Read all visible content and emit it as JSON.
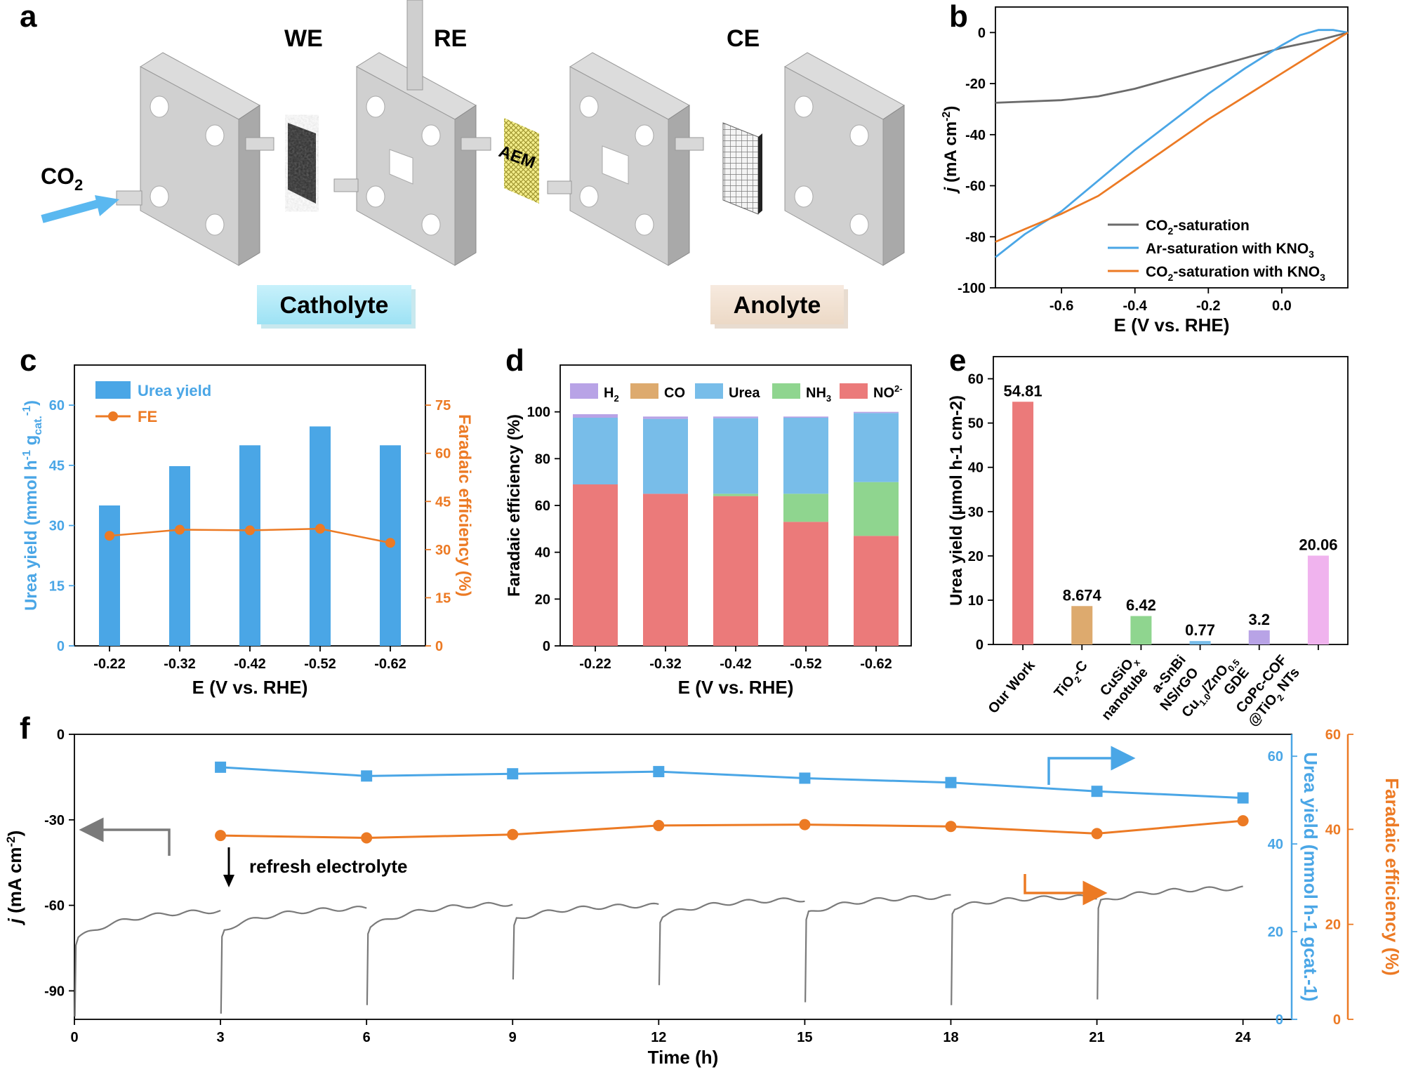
{
  "panels": {
    "a": "a",
    "b": "b",
    "c": "c",
    "d": "d",
    "e": "e",
    "f": "f"
  },
  "panel_a": {
    "we": "WE",
    "re": "RE",
    "ce": "CE",
    "aem": "AEM",
    "co2_main": "CO",
    "co2_sub": "2",
    "catholyte": "Catholyte",
    "anolyte": "Anolyte"
  },
  "colors": {
    "blue": "#4aa6e6",
    "orange": "#ec7a24",
    "gray": "#6b6b6b",
    "red": "#eb7a7a",
    "green": "#8fd58f",
    "lightblue": "#78bde9",
    "purple": "#b8a3e6",
    "tan": "#ddaa6e"
  },
  "chart_data": [
    {
      "id": "b",
      "type": "line",
      "xlabel": "E (V vs. RHE)",
      "ylabel": "j (mA cm-2)",
      "xlim": [
        -0.78,
        0.18
      ],
      "ylim": [
        -100,
        10
      ],
      "xticks": [
        -0.6,
        -0.4,
        -0.2,
        0.0
      ],
      "xtick_labels": [
        "-0.6",
        "-0.4",
        "-0.2",
        "0.0"
      ],
      "yticks": [
        0,
        -20,
        -40,
        -60,
        -80,
        -100
      ],
      "ytick_labels": [
        "0",
        "-20",
        "-40",
        "-60",
        "-80",
        "-100"
      ],
      "series": [
        {
          "name": "CO2-saturation",
          "color": "#6b6b6b",
          "x": [
            -0.78,
            -0.6,
            -0.5,
            -0.4,
            -0.3,
            -0.2,
            -0.1,
            0,
            0.1,
            0.18
          ],
          "y": [
            -27.5,
            -26.5,
            -25,
            -22,
            -18,
            -14,
            -10,
            -6,
            -3,
            0
          ]
        },
        {
          "name": "Ar-saturation with KNO3",
          "color": "#4aa6e6",
          "x": [
            -0.78,
            -0.7,
            -0.6,
            -0.5,
            -0.4,
            -0.3,
            -0.2,
            -0.1,
            0,
            0.05,
            0.1,
            0.14,
            0.18
          ],
          "y": [
            -88,
            -79,
            -70,
            -58,
            -46,
            -35,
            -24,
            -14,
            -5,
            -1,
            1,
            1,
            0
          ]
        },
        {
          "name": "CO2-saturation with KNO3",
          "color": "#ec7a24",
          "x": [
            -0.78,
            -0.7,
            -0.6,
            -0.5,
            -0.4,
            -0.3,
            -0.2,
            -0.1,
            0,
            0.1,
            0.18
          ],
          "y": [
            -82,
            -77,
            -71,
            -64,
            -54,
            -44,
            -34,
            -25,
            -16,
            -7,
            0
          ]
        }
      ],
      "legend": [
        "CO2-saturation",
        "Ar-saturation with KNO3",
        "CO2-saturation with KNO3"
      ],
      "legend_display": {
        "l1a": "CO",
        "l1b": "2",
        "l1c": "-saturation",
        "l2a": "Ar-saturation with KNO",
        "l2b": "3",
        "l3a": "CO",
        "l3b": "2",
        "l3c": "-saturation with KNO",
        "l3d": "3"
      }
    },
    {
      "id": "c",
      "type": "bar",
      "categories": [
        "-0.22",
        "-0.32",
        "-0.42",
        "-0.52",
        "-0.62"
      ],
      "series": [
        {
          "name": "Urea yield",
          "axis": "left",
          "values": [
            35,
            44.8,
            50,
            54.7,
            50
          ]
        },
        {
          "name": "FE",
          "axis": "right",
          "values": [
            34.3,
            36.2,
            36.0,
            36.5,
            32.1
          ]
        }
      ],
      "xlabel": "E (V vs. RHE)",
      "ylabel_left": "Urea yield (mmol h-1 gcat.-1)",
      "ylabel_right": "Faradaic efficiency (%)",
      "ylim_left": [
        0,
        70
      ],
      "ylim_right": [
        0,
        87.5
      ],
      "yticks_left": [
        "0",
        "15",
        "30",
        "45",
        "60"
      ],
      "yticks_right": [
        "0",
        "15",
        "30",
        "45",
        "60",
        "75"
      ],
      "legend": [
        "Urea yield",
        "FE"
      ],
      "ylabel_left_display": {
        "a": "Urea yield (mmol h",
        "b": "-1",
        "c": " g",
        "d": "cat.",
        "e": "-1",
        "f": ")"
      }
    },
    {
      "id": "d",
      "type": "bar",
      "stacked": true,
      "categories": [
        "-0.22",
        "-0.32",
        "-0.42",
        "-0.52",
        "-0.62"
      ],
      "series": [
        {
          "name": "NO2-",
          "color": "#eb7a7a",
          "values": [
            69,
            65,
            64,
            53,
            47
          ]
        },
        {
          "name": "NH3",
          "color": "#8fd58f",
          "values": [
            0,
            0,
            1,
            12,
            23
          ]
        },
        {
          "name": "Urea",
          "color": "#78bde9",
          "values": [
            28.5,
            32,
            32.3,
            32.5,
            29.5
          ]
        },
        {
          "name": "CO",
          "color": "#ddaa6e",
          "values": [
            0,
            0,
            0,
            0,
            0
          ]
        },
        {
          "name": "H2",
          "color": "#b8a3e6",
          "values": [
            1.5,
            1,
            0.7,
            0.5,
            0.5
          ]
        }
      ],
      "xlabel": "E (V vs. RHE)",
      "ylabel": "Faradaic efficiency (%)",
      "ylim": [
        0,
        120
      ],
      "yticks": [
        "0",
        "20",
        "40",
        "60",
        "80",
        "100"
      ],
      "legend": [
        "H2",
        "CO",
        "Urea",
        "NH3",
        "NO2-"
      ],
      "legend_display": {
        "h2a": "H",
        "h2b": "2",
        "co": "CO",
        "urea": "Urea",
        "nh3a": "NH",
        "nh3b": "3",
        "no2a": "NO",
        "no2b": "2-"
      }
    },
    {
      "id": "e",
      "type": "bar",
      "categories": [
        "Our Work",
        "TiO2-C",
        "CuSiOx nanotube",
        "a-SnBi NS/rGO",
        "Cu1.0/ZnO0.5 GDE",
        "CoPc-COF @TiO2 NTs"
      ],
      "values": [
        54.81,
        8.674,
        6.42,
        0.77,
        3.2,
        20.06
      ],
      "value_labels": [
        "54.81",
        "8.674",
        "6.42",
        "0.77",
        "3.2",
        "20.06"
      ],
      "colors": [
        "#eb7a7a",
        "#ddaa6e",
        "#8fd58f",
        "#78bde9",
        "#b8a3e6",
        "#f0b3ee"
      ],
      "ylabel": "Urea yield (μmol h-1 cm-2)",
      "ylim": [
        0,
        65
      ],
      "yticks": [
        "0",
        "10",
        "20",
        "30",
        "40",
        "50",
        "60"
      ],
      "tick_display": {
        "t1": "Our Work",
        "t2a": "TiO",
        "t2b": "2",
        "t2c": "-C",
        "t3a": "CuSiO",
        "t3b": "x",
        "t3c": "nanotube",
        "t4a": "a-SnBi",
        "t4b": "NS/rGO",
        "t5a": "Cu",
        "t5b": "1.0",
        "t5c": "/ZnO",
        "t5d": "0.5",
        "t5e": "GDE",
        "t6a": "CoPc-COF",
        "t6b": "@TiO",
        "t6c": "2",
        "t6d": " NTs"
      }
    },
    {
      "id": "f",
      "type": "line",
      "xlabel": "Time (h)",
      "ylabel_left": "j (mA cm-2)",
      "ylabel_mid": "Urea yield (mmol h-1 gcat.-1)",
      "ylabel_right": "Faradaic efficiency (%)",
      "xlim": [
        0,
        25
      ],
      "xticks": [
        "0",
        "3",
        "6",
        "9",
        "12",
        "15",
        "18",
        "21",
        "24"
      ],
      "ylim_left": [
        -100,
        0
      ],
      "yticks_left": [
        "0",
        "-30",
        "-60",
        "-90"
      ],
      "ylim_mid": [
        0,
        65
      ],
      "yticks_mid": [
        "0",
        "20",
        "40",
        "60"
      ],
      "ylim_right": [
        0,
        60
      ],
      "yticks_right": [
        "0",
        "20",
        "40",
        "60"
      ],
      "annotation": "refresh electrolyte",
      "urea_yield": {
        "x": [
          3,
          6,
          9,
          12,
          15,
          18,
          21,
          24
        ],
        "y": [
          57.5,
          55.5,
          56,
          56.5,
          55,
          54,
          52,
          50.5
        ]
      },
      "fe": {
        "x": [
          3,
          6,
          9,
          12,
          15,
          18,
          21,
          24
        ],
        "y": [
          38.7,
          38.2,
          38.9,
          40.8,
          41,
          40.6,
          39.1,
          41.8
        ]
      },
      "current_segments": [
        {
          "t0": 0,
          "t1": 3,
          "start": -72,
          "end": -62
        },
        {
          "t0": 3,
          "t1": 6,
          "start": -69,
          "end": -61
        },
        {
          "t0": 6,
          "t1": 9,
          "start": -68,
          "end": -59.5
        },
        {
          "t0": 9,
          "t1": 12,
          "start": -65,
          "end": -60
        },
        {
          "t0": 12,
          "t1": 15,
          "start": -64,
          "end": -58
        },
        {
          "t0": 15,
          "t1": 18,
          "start": -63,
          "end": -57
        },
        {
          "t0": 18,
          "t1": 21,
          "start": -61,
          "end": -57
        },
        {
          "t0": 21,
          "t1": 24,
          "start": -59,
          "end": -54
        }
      ],
      "current_spike_min": [
        -99,
        -98,
        -95,
        -86,
        -88,
        -94,
        -95,
        -93
      ]
    }
  ]
}
